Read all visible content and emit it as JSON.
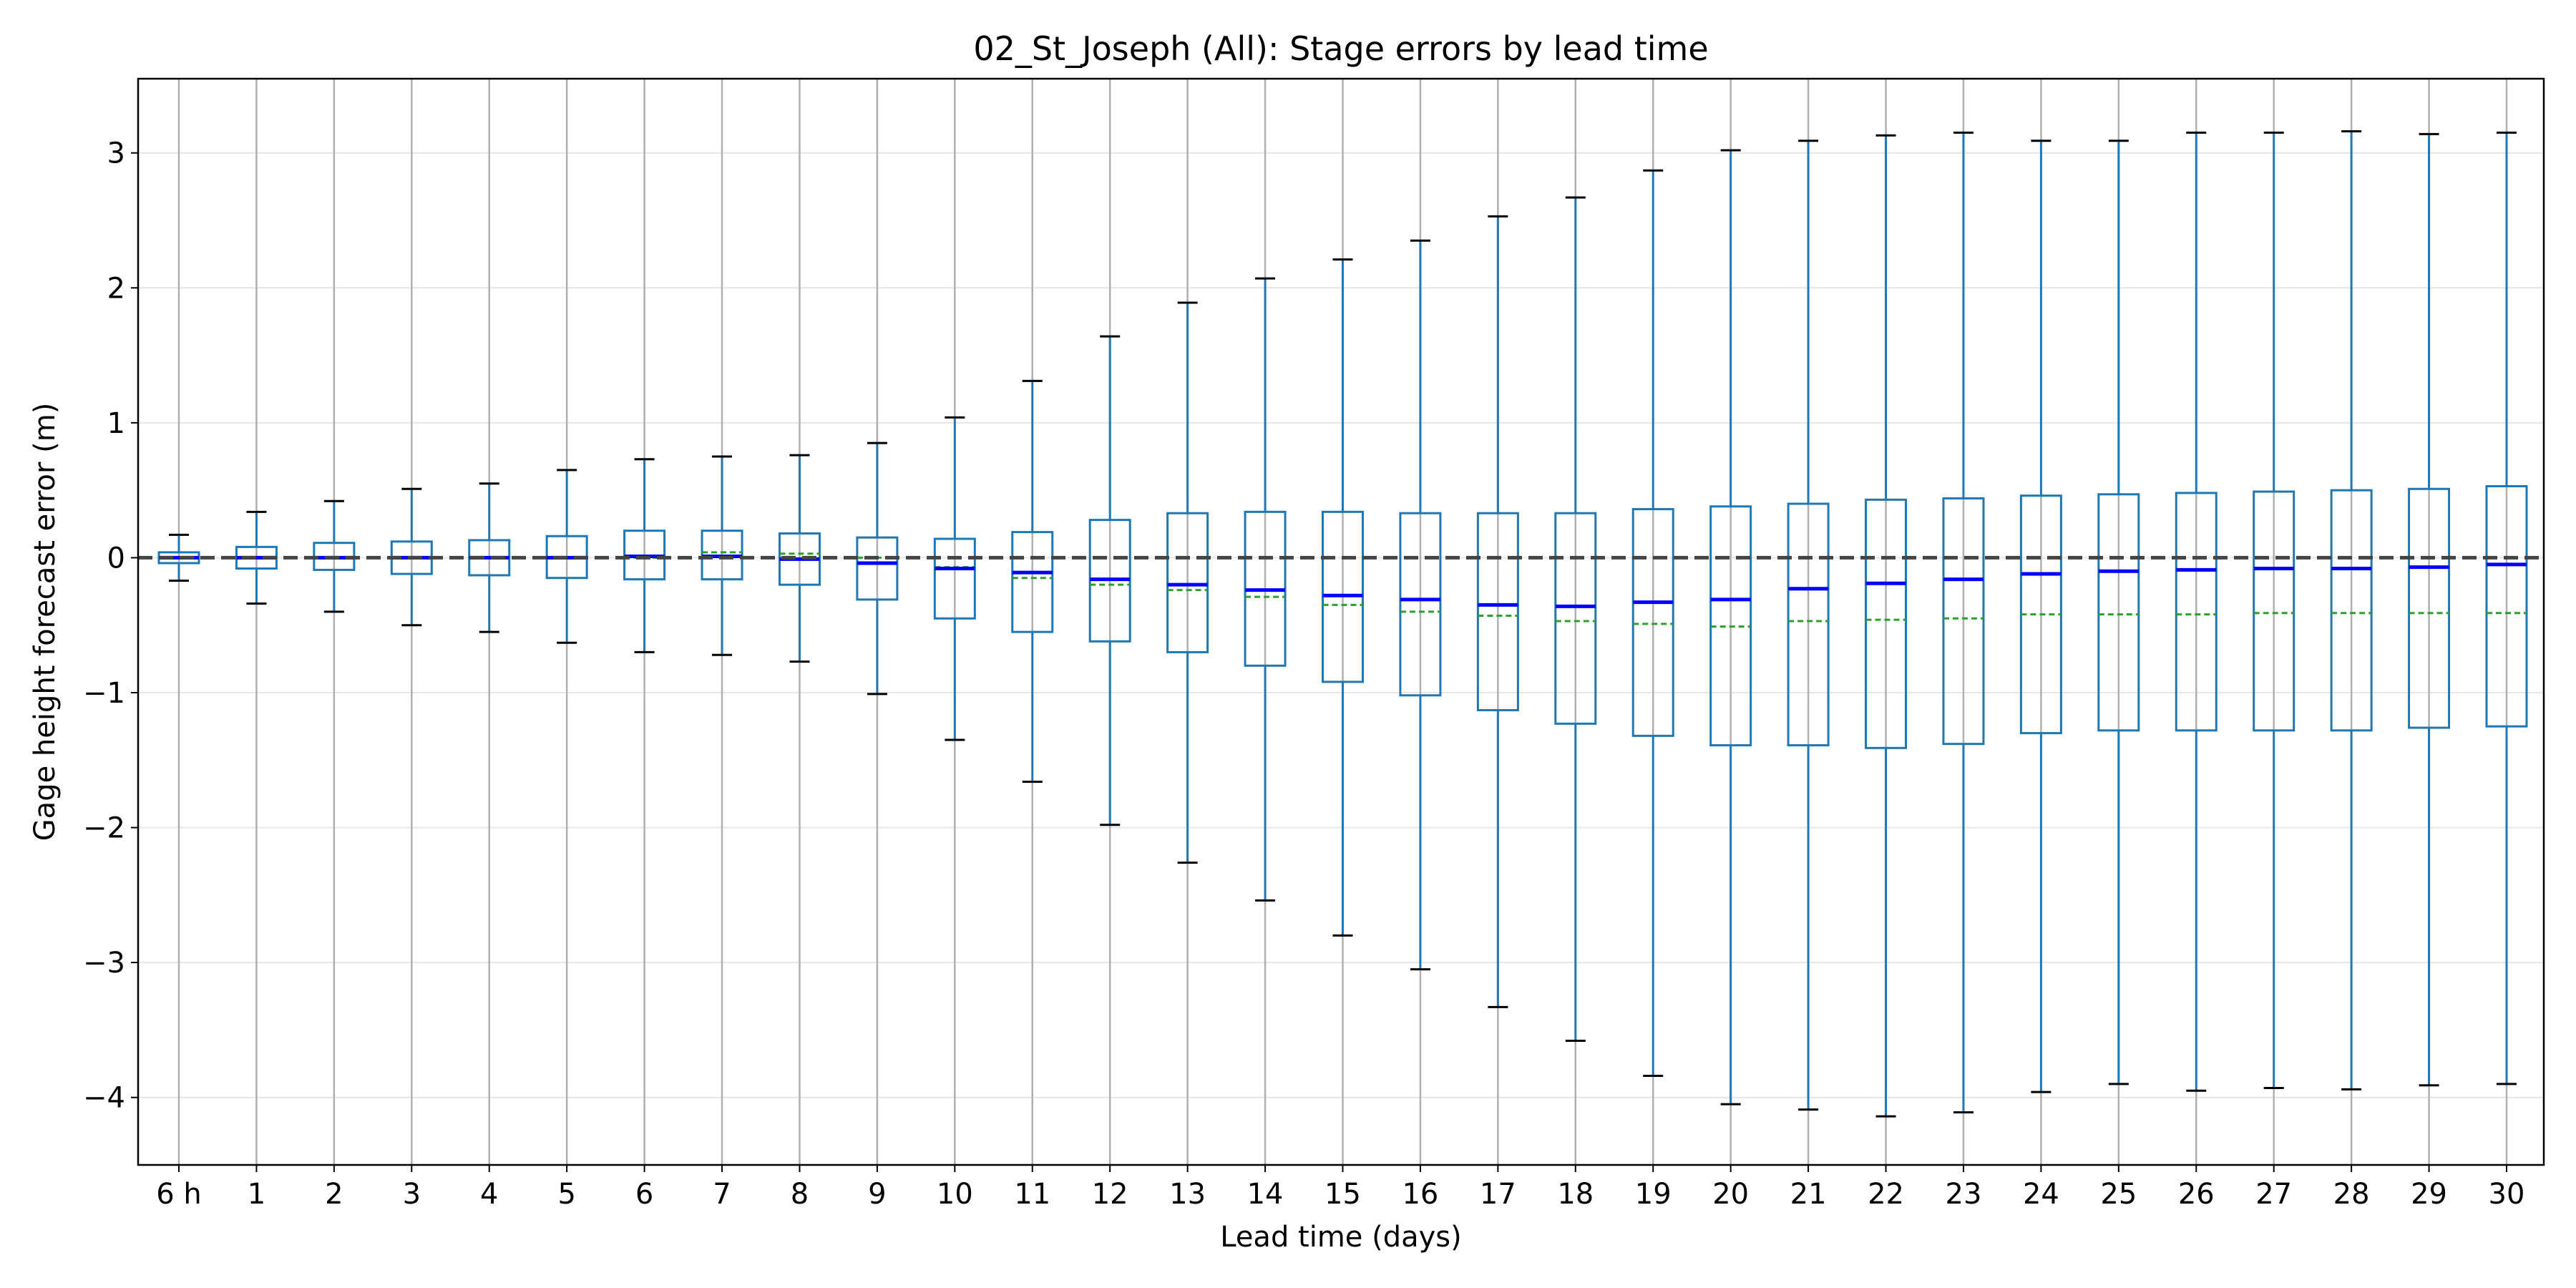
{
  "chart_data": {
    "type": "box",
    "title": "02_St_Joseph (All): Stage errors by lead time",
    "xlabel": "Lead time (days)",
    "ylabel": "Gage height forecast error (m)",
    "categories": [
      "6 h",
      "1",
      "2",
      "3",
      "4",
      "5",
      "6",
      "7",
      "8",
      "9",
      "10",
      "11",
      "12",
      "13",
      "14",
      "15",
      "16",
      "17",
      "18",
      "19",
      "20",
      "21",
      "22",
      "23",
      "24",
      "25",
      "26",
      "27",
      "28",
      "29",
      "30"
    ],
    "ylim": [
      -4.5,
      3.55
    ],
    "yticks": [
      3,
      2,
      1,
      0,
      -1,
      -2,
      -3,
      -4
    ],
    "ytick_labels": [
      "3",
      "2",
      "1",
      "0",
      "−1",
      "−2",
      "−3",
      "−4"
    ],
    "grid": {
      "x": true,
      "y": true
    },
    "reference_line": {
      "y": 0,
      "style": "dashed",
      "color": "#444444"
    },
    "colors": {
      "box": "#1f77b4",
      "median": "#0000ff",
      "mean": "#2ca02c",
      "whisker_cap": "#000000",
      "grid_x": "#b0b0b0",
      "grid_y": "#e6e6e6"
    },
    "boxes": [
      {
        "q1": -0.04,
        "q3": 0.04,
        "median": 0.0,
        "mean": 0.0,
        "whisker_low": -0.17,
        "whisker_high": 0.17
      },
      {
        "q1": -0.08,
        "q3": 0.08,
        "median": 0.0,
        "mean": 0.0,
        "whisker_low": -0.34,
        "whisker_high": 0.34
      },
      {
        "q1": -0.09,
        "q3": 0.11,
        "median": 0.0,
        "mean": 0.0,
        "whisker_low": -0.4,
        "whisker_high": 0.42
      },
      {
        "q1": -0.12,
        "q3": 0.12,
        "median": 0.0,
        "mean": 0.0,
        "whisker_low": -0.5,
        "whisker_high": 0.51
      },
      {
        "q1": -0.13,
        "q3": 0.13,
        "median": 0.0,
        "mean": 0.0,
        "whisker_low": -0.55,
        "whisker_high": 0.55
      },
      {
        "q1": -0.15,
        "q3": 0.16,
        "median": 0.0,
        "mean": 0.0,
        "whisker_low": -0.63,
        "whisker_high": 0.65
      },
      {
        "q1": -0.16,
        "q3": 0.2,
        "median": 0.01,
        "mean": 0.0,
        "whisker_low": -0.7,
        "whisker_high": 0.73
      },
      {
        "q1": -0.16,
        "q3": 0.2,
        "median": 0.01,
        "mean": 0.04,
        "whisker_low": -0.72,
        "whisker_high": 0.75
      },
      {
        "q1": -0.2,
        "q3": 0.18,
        "median": -0.01,
        "mean": 0.03,
        "whisker_low": -0.77,
        "whisker_high": 0.76
      },
      {
        "q1": -0.31,
        "q3": 0.15,
        "median": -0.04,
        "mean": 0.0,
        "whisker_low": -1.01,
        "whisker_high": 0.85
      },
      {
        "q1": -0.45,
        "q3": 0.14,
        "median": -0.08,
        "mean": -0.07,
        "whisker_low": -1.35,
        "whisker_high": 1.04
      },
      {
        "q1": -0.55,
        "q3": 0.19,
        "median": -0.11,
        "mean": -0.15,
        "whisker_low": -1.66,
        "whisker_high": 1.31
      },
      {
        "q1": -0.62,
        "q3": 0.28,
        "median": -0.16,
        "mean": -0.2,
        "whisker_low": -1.98,
        "whisker_high": 1.64
      },
      {
        "q1": -0.7,
        "q3": 0.33,
        "median": -0.2,
        "mean": -0.24,
        "whisker_low": -2.26,
        "whisker_high": 1.89
      },
      {
        "q1": -0.8,
        "q3": 0.34,
        "median": -0.24,
        "mean": -0.29,
        "whisker_low": -2.54,
        "whisker_high": 2.07
      },
      {
        "q1": -0.92,
        "q3": 0.34,
        "median": -0.28,
        "mean": -0.35,
        "whisker_low": -2.8,
        "whisker_high": 2.21
      },
      {
        "q1": -1.02,
        "q3": 0.33,
        "median": -0.31,
        "mean": -0.4,
        "whisker_low": -3.05,
        "whisker_high": 2.35
      },
      {
        "q1": -1.13,
        "q3": 0.33,
        "median": -0.35,
        "mean": -0.43,
        "whisker_low": -3.33,
        "whisker_high": 2.53
      },
      {
        "q1": -1.23,
        "q3": 0.33,
        "median": -0.36,
        "mean": -0.47,
        "whisker_low": -3.58,
        "whisker_high": 2.67
      },
      {
        "q1": -1.32,
        "q3": 0.36,
        "median": -0.33,
        "mean": -0.49,
        "whisker_low": -3.84,
        "whisker_high": 2.87
      },
      {
        "q1": -1.39,
        "q3": 0.38,
        "median": -0.31,
        "mean": -0.51,
        "whisker_low": -4.05,
        "whisker_high": 3.02
      },
      {
        "q1": -1.39,
        "q3": 0.4,
        "median": -0.23,
        "mean": -0.47,
        "whisker_low": -4.09,
        "whisker_high": 3.09
      },
      {
        "q1": -1.41,
        "q3": 0.43,
        "median": -0.19,
        "mean": -0.46,
        "whisker_low": -4.14,
        "whisker_high": 3.13
      },
      {
        "q1": -1.38,
        "q3": 0.44,
        "median": -0.16,
        "mean": -0.45,
        "whisker_low": -4.11,
        "whisker_high": 3.15
      },
      {
        "q1": -1.3,
        "q3": 0.46,
        "median": -0.12,
        "mean": -0.42,
        "whisker_low": -3.96,
        "whisker_high": 3.09
      },
      {
        "q1": -1.28,
        "q3": 0.47,
        "median": -0.1,
        "mean": -0.42,
        "whisker_low": -3.9,
        "whisker_high": 3.09
      },
      {
        "q1": -1.28,
        "q3": 0.48,
        "median": -0.09,
        "mean": -0.42,
        "whisker_low": -3.95,
        "whisker_high": 3.15
      },
      {
        "q1": -1.28,
        "q3": 0.49,
        "median": -0.08,
        "mean": -0.41,
        "whisker_low": -3.93,
        "whisker_high": 3.15
      },
      {
        "q1": -1.28,
        "q3": 0.5,
        "median": -0.08,
        "mean": -0.41,
        "whisker_low": -3.94,
        "whisker_high": 3.16
      },
      {
        "q1": -1.26,
        "q3": 0.51,
        "median": -0.07,
        "mean": -0.41,
        "whisker_low": -3.91,
        "whisker_high": 3.14
      },
      {
        "q1": -1.25,
        "q3": 0.53,
        "median": -0.05,
        "mean": -0.41,
        "whisker_low": -3.9,
        "whisker_high": 3.15
      }
    ]
  }
}
